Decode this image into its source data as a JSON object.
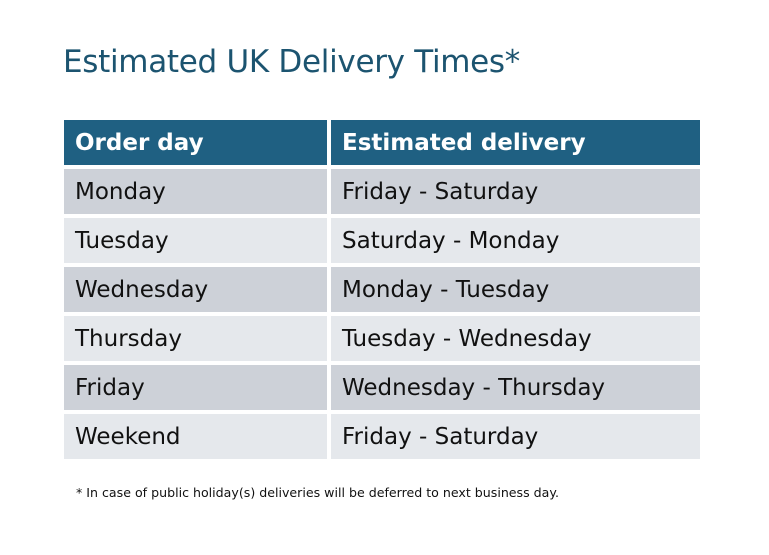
{
  "title": "Estimated UK Delivery Times*",
  "table": {
    "headers": [
      "Order day",
      "Estimated delivery"
    ],
    "rows": [
      [
        "Monday",
        "Friday - Saturday"
      ],
      [
        "Tuesday",
        "Saturday - Monday"
      ],
      [
        "Wednesday",
        "Monday - Tuesday"
      ],
      [
        "Thursday",
        "Tuesday - Wednesday"
      ],
      [
        "Friday",
        "Wednesday - Thursday"
      ],
      [
        "Weekend",
        "Friday - Saturday"
      ]
    ]
  },
  "footnote": "* In case of public holiday(s) deliveries will be deferred to next business day.",
  "colors": {
    "header": "#1F6082",
    "title": "#1C5470",
    "row_dark": "#CDD1D8",
    "row_light": "#E5E8EC"
  }
}
